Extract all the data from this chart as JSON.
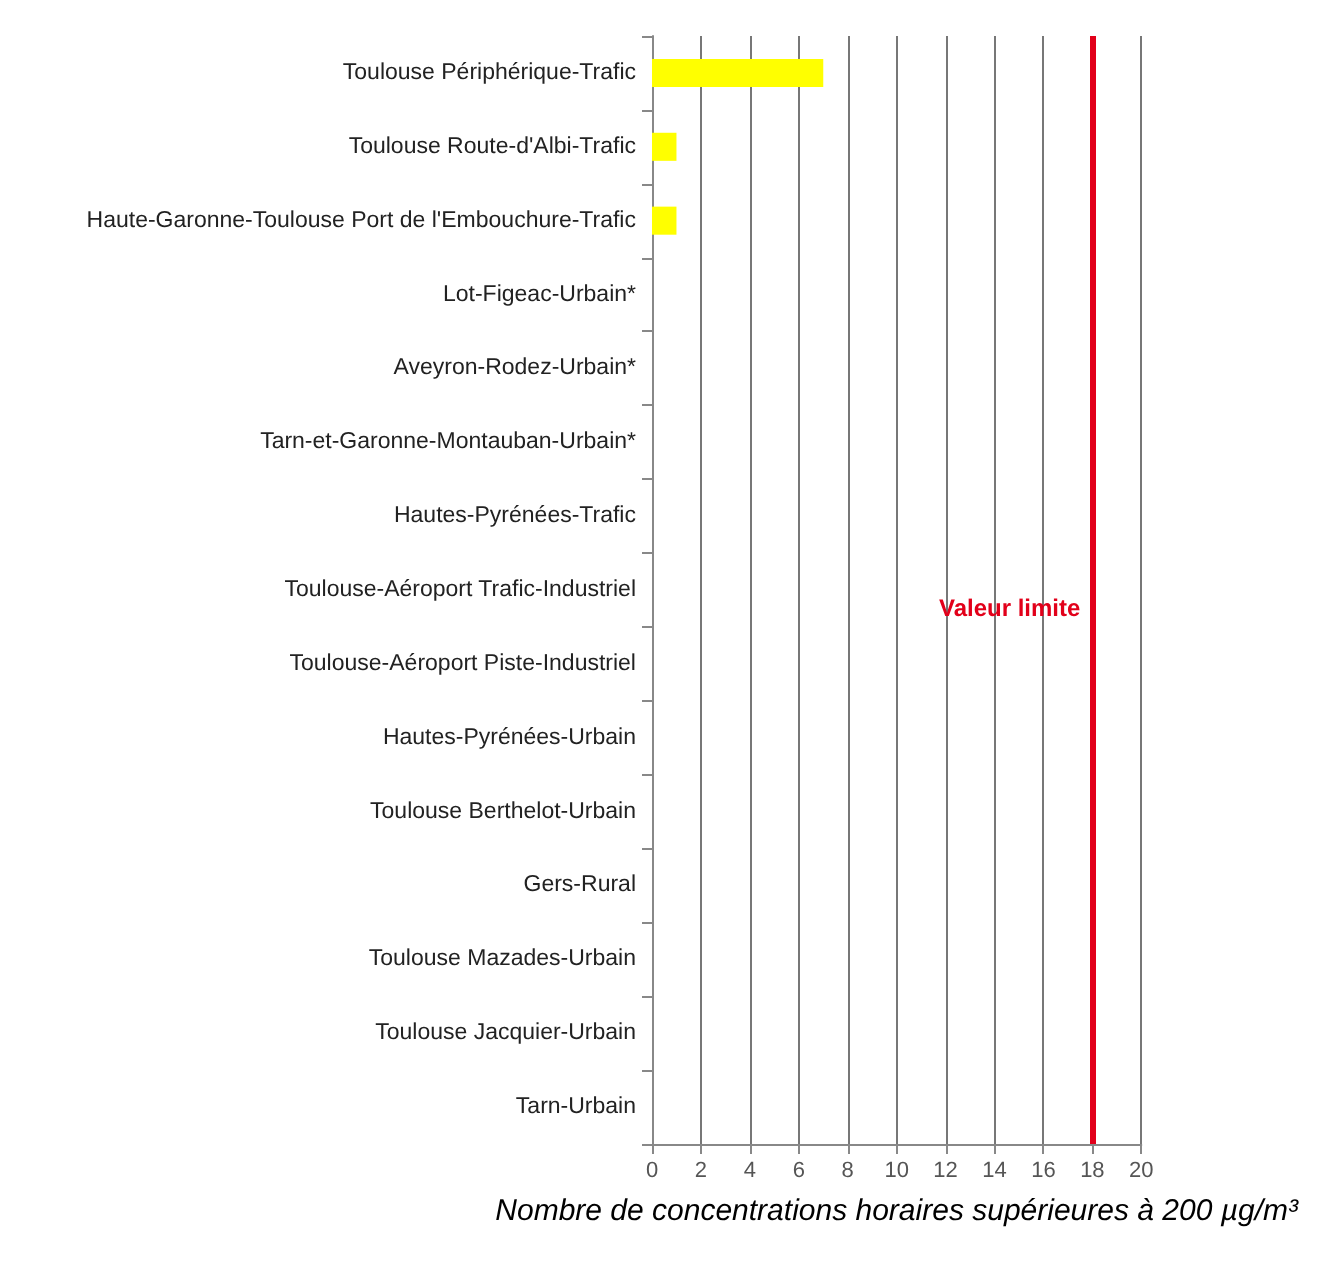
{
  "chart_data": {
    "type": "bar",
    "orientation": "horizontal",
    "xlabel": "Nombre de concentrations horaires supérieures à 200 µg/m³",
    "categories": [
      "Toulouse Périphérique-Trafic",
      "Toulouse Route-d'Albi-Trafic",
      "Haute-Garonne-Toulouse Port de l'Embouchure-Trafic",
      "Lot-Figeac-Urbain*",
      "Aveyron-Rodez-Urbain*",
      "Tarn-et-Garonne-Montauban-Urbain*",
      "Hautes-Pyrénées-Trafic",
      "Toulouse-Aéroport Trafic-Industriel",
      "Toulouse-Aéroport Piste-Industriel",
      "Hautes-Pyrénées-Urbain",
      "Toulouse Berthelot-Urbain",
      "Gers-Rural",
      "Toulouse Mazades-Urbain",
      "Toulouse Jacquier-Urbain",
      "Tarn-Urbain"
    ],
    "values": [
      7,
      1,
      1,
      0,
      0,
      0,
      0,
      0,
      0,
      0,
      0,
      0,
      0,
      0,
      0
    ],
    "color": "#ffff00",
    "xlim": [
      0,
      20
    ],
    "xticks": [
      0,
      2,
      4,
      6,
      8,
      10,
      12,
      14,
      16,
      18,
      20
    ],
    "grid": "x",
    "ref_lines": [
      {
        "axis": "x",
        "value": 18,
        "label": "Valeur limite",
        "color": "#e2001a"
      }
    ]
  }
}
